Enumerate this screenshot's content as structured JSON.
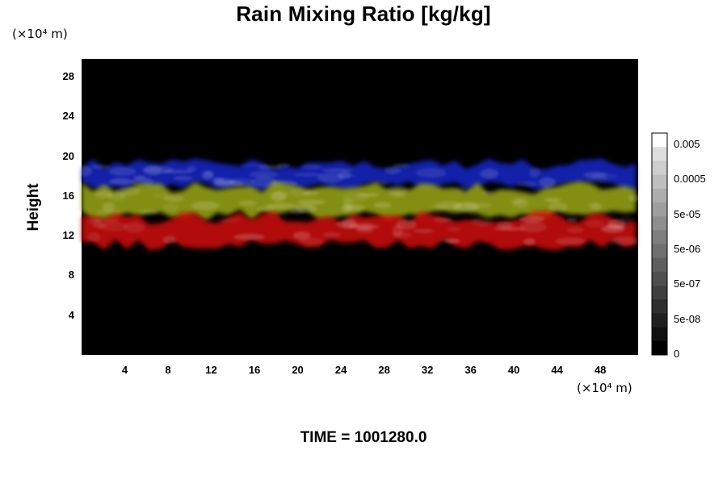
{
  "chart_data": {
    "type": "heatmap",
    "title": "Rain Mixing Ratio [kg/kg]",
    "ylabel": "Height",
    "y_unit": "(×10⁴ m)",
    "x_unit": "(×10⁴ m)",
    "xlim": [
      0,
      51.5
    ],
    "ylim": [
      0,
      29.8
    ],
    "x_ticks": [
      "4",
      "8",
      "12",
      "16",
      "20",
      "24",
      "28",
      "32",
      "36",
      "40",
      "44",
      "48"
    ],
    "x_tick_values": [
      4,
      8,
      12,
      16,
      20,
      24,
      28,
      32,
      36,
      40,
      44,
      48
    ],
    "y_ticks": [
      "4",
      "8",
      "12",
      "16",
      "20",
      "24",
      "28"
    ],
    "y_tick_values": [
      4,
      8,
      12,
      16,
      20,
      24,
      28
    ],
    "colorbar": {
      "labels": [
        "0.005",
        "0.0005",
        "5e-05",
        "5e-06",
        "5e-07",
        "5e-08",
        "0"
      ],
      "levels": 16,
      "colormap": "grayscale"
    },
    "layers": [
      {
        "color": "#1428c8",
        "y_range": [
          16.5,
          19.8
        ],
        "x_range": [
          0,
          51.5
        ]
      },
      {
        "color": "#9aa818",
        "y_range": [
          13.5,
          17.5
        ],
        "x_range": [
          0,
          51.5
        ]
      },
      {
        "color": "#d01010",
        "y_range": [
          10.5,
          14.5
        ],
        "x_range": [
          0,
          51.5
        ]
      }
    ],
    "time_label": "TIME = 1001280.0"
  }
}
